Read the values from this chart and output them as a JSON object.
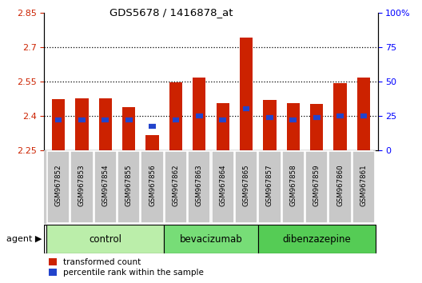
{
  "title": "GDS5678 / 1416878_at",
  "samples": [
    "GSM967852",
    "GSM967853",
    "GSM967854",
    "GSM967855",
    "GSM967856",
    "GSM967862",
    "GSM967863",
    "GSM967864",
    "GSM967865",
    "GSM967857",
    "GSM967858",
    "GSM967859",
    "GSM967860",
    "GSM967861"
  ],
  "red_values": [
    2.473,
    2.476,
    2.475,
    2.437,
    2.315,
    2.545,
    2.565,
    2.455,
    2.74,
    2.47,
    2.455,
    2.45,
    2.543,
    2.568
  ],
  "blue_values": [
    2.38,
    2.38,
    2.381,
    2.381,
    2.355,
    2.382,
    2.398,
    2.382,
    2.43,
    2.392,
    2.382,
    2.392,
    2.4,
    2.4
  ],
  "ylim_left": [
    2.25,
    2.85
  ],
  "yticks_left": [
    2.25,
    2.4,
    2.55,
    2.7,
    2.85
  ],
  "yticks_right": [
    0,
    25,
    50,
    75,
    100
  ],
  "ylim_right": [
    0,
    100
  ],
  "group_info": [
    {
      "label": "control",
      "indices": [
        0,
        1,
        2,
        3,
        4
      ],
      "color": "#bbeeaa"
    },
    {
      "label": "bevacizumab",
      "indices": [
        5,
        6,
        7,
        8
      ],
      "color": "#77dd77"
    },
    {
      "label": "dibenzazepine",
      "indices": [
        9,
        10,
        11,
        12,
        13
      ],
      "color": "#55cc55"
    }
  ],
  "red_color": "#cc2200",
  "blue_color": "#2244cc",
  "bar_bottom": 2.25,
  "bar_width": 0.55,
  "legend_red": "transformed count",
  "legend_blue": "percentile rank within the sample",
  "plot_bg_color": "#ffffff",
  "grid_yticks": [
    2.4,
    2.55,
    2.7
  ]
}
